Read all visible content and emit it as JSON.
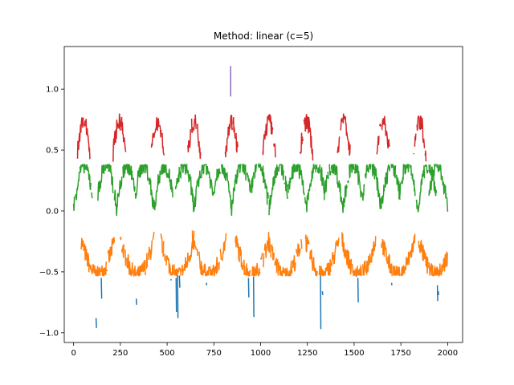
{
  "chart_data": {
    "type": "line",
    "title": "Method: linear (c=5)",
    "xlabel": "",
    "ylabel": "",
    "xlim": [
      -50,
      2080
    ],
    "ylim": [
      -1.08,
      1.35
    ],
    "xticks": [
      0,
      250,
      500,
      750,
      1000,
      1250,
      1500,
      1750,
      2000
    ],
    "xtick_labels": [
      "0",
      "250",
      "500",
      "750",
      "1000",
      "1250",
      "1500",
      "1750",
      "2000"
    ],
    "yticks": [
      -1.0,
      -0.5,
      0.0,
      0.5,
      1.0
    ],
    "ytick_labels": [
      "−1.0",
      "−0.5",
      "0.0",
      "0.5",
      "1.0"
    ],
    "grid": false,
    "legend": "none",
    "series": [
      {
        "color": "#1f77b4",
        "segments": [
          [
            [
              120,
              -0.88
            ],
            [
              122,
              -0.96
            ]
          ],
          [
            [
              148,
              -0.55
            ],
            [
              150,
              -0.72
            ]
          ],
          [
            [
              335,
              -0.72
            ],
            [
              337,
              -0.77
            ]
          ],
          [
            [
              520,
              -0.56
            ],
            [
              522,
              -0.57
            ]
          ],
          [
            [
              548,
              -0.55
            ],
            [
              550,
              -0.83
            ]
          ],
          [
            [
              556,
              -0.53
            ],
            [
              558,
              -0.88
            ]
          ],
          [
            [
              566,
              -0.53
            ],
            [
              568,
              -0.63
            ]
          ],
          [
            [
              710,
              -0.59
            ],
            [
              712,
              -0.61
            ]
          ],
          [
            [
              935,
              -0.55
            ],
            [
              937,
              -0.71
            ]
          ],
          [
            [
              962,
              -0.54
            ],
            [
              964,
              -0.87
            ]
          ],
          [
            [
              1320,
              -0.53
            ],
            [
              1322,
              -0.97
            ]
          ],
          [
            [
              1330,
              -0.66
            ],
            [
              1332,
              -0.69
            ]
          ],
          [
            [
              1510,
              -0.53
            ],
            [
              1512,
              -0.54
            ]
          ],
          [
            [
              1520,
              -0.55
            ],
            [
              1522,
              -0.75
            ]
          ],
          [
            [
              1700,
              -0.59
            ],
            [
              1702,
              -0.61
            ]
          ],
          [
            [
              1945,
              -0.61
            ],
            [
              1947,
              -0.74
            ]
          ],
          [
            [
              1950,
              -0.66
            ],
            [
              1952,
              -0.69
            ]
          ]
        ]
      },
      {
        "color": "#ff7f0e",
        "centers": [
          130,
          340,
          555,
          725,
          955,
          1130,
          1330,
          1525,
          1735,
          1935
        ],
        "yRange": [
          -0.53,
          -0.08
        ],
        "halfWidth": 90
      },
      {
        "color": "#2ca02c",
        "centers": [
          0,
          230,
          430,
          645,
          845,
          1045,
          1245,
          1440,
          1645,
          1840,
          2000
        ],
        "yRange": [
          -0.04,
          0.38
        ],
        "halfWidth": 100
      },
      {
        "color": "#d62728",
        "centers": [
          55,
          245,
          450,
          645,
          845,
          1045,
          1245,
          1445,
          1655,
          1850
        ],
        "yRange": [
          0.37,
          0.8
        ],
        "halfWidth": 34
      },
      {
        "color": "#9467bd",
        "segments": [
          [
            [
              840,
              0.94
            ],
            [
              840,
              1.19
            ]
          ]
        ]
      }
    ]
  }
}
